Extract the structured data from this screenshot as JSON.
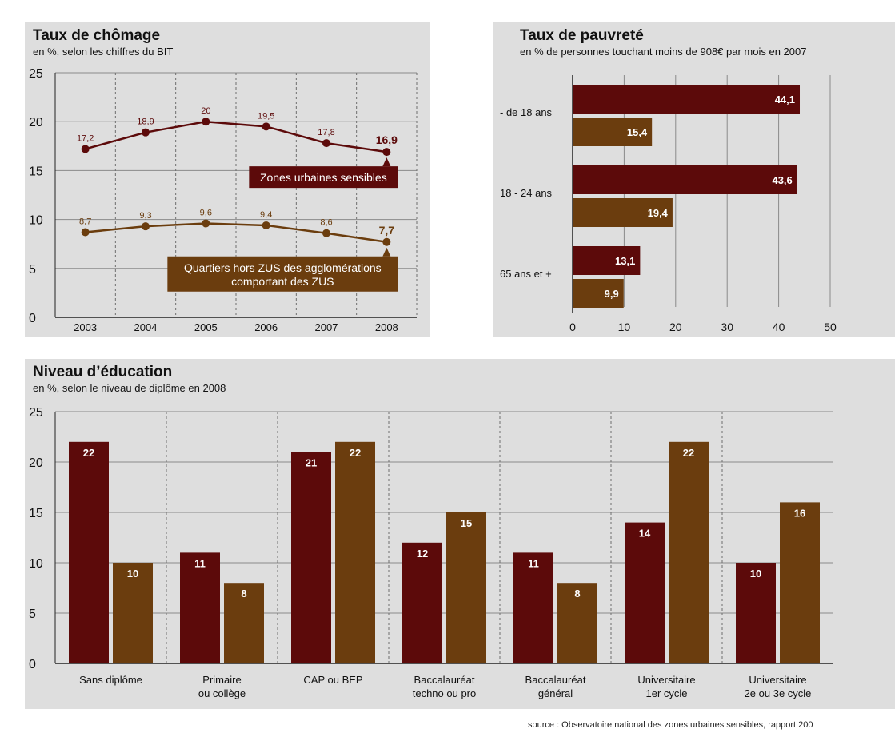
{
  "colors": {
    "zus": "#5c0a0a",
    "hors_zus": "#6b3d0e",
    "panel_bg": "#dedede"
  },
  "chomage": {
    "title": "Taux de chômage",
    "subtitle": "en %, selon les chiffres du BIT"
  },
  "pauvrete": {
    "title": "Taux de pauvreté",
    "subtitle": "en % de personnes touchant moins de 908€ par mois en 2007"
  },
  "education": {
    "title": "Niveau d’éducation",
    "subtitle": "en %, selon le niveau de diplôme en 2008"
  },
  "source": "source : Observatoire national des zones urbaines sensibles, rapport 200",
  "chart_data": [
    {
      "id": "chomage",
      "type": "line",
      "x": [
        "2003",
        "2004",
        "2005",
        "2006",
        "2007",
        "2008"
      ],
      "ylim": [
        0,
        25
      ],
      "yticks": [
        0,
        5,
        10,
        15,
        20,
        25
      ],
      "grid": true,
      "series": [
        {
          "name": "Zones urbaines sensibles",
          "values": [
            17.2,
            18.9,
            20,
            19.5,
            17.8,
            16.9
          ],
          "labels": [
            "17,2",
            "18,9",
            "20",
            "19,5",
            "17,8",
            "16,9"
          ],
          "color": "#5c0a0a"
        },
        {
          "name": "Quartiers hors ZUS des agglomérations comportant des ZUS",
          "name_lines": [
            "Quartiers hors ZUS des agglomérations",
            "comportant des ZUS"
          ],
          "values": [
            8.7,
            9.3,
            9.6,
            9.4,
            8.6,
            7.7
          ],
          "labels": [
            "8,7",
            "9,3",
            "9,6",
            "9,4",
            "8,6",
            "7,7"
          ],
          "color": "#6b3d0e"
        }
      ]
    },
    {
      "id": "pauvrete",
      "type": "bar",
      "orientation": "horizontal",
      "categories": [
        "- de 18 ans",
        "18 - 24 ans",
        "65 ans et +"
      ],
      "xlim": [
        0,
        50
      ],
      "xticks": [
        0,
        10,
        20,
        30,
        40,
        50
      ],
      "grid": true,
      "series": [
        {
          "values": [
            44.1,
            43.6,
            13.1
          ],
          "labels": [
            "44,1",
            "43,6",
            "13,1"
          ],
          "color": "#5c0a0a"
        },
        {
          "values": [
            15.4,
            19.4,
            9.9
          ],
          "labels": [
            "15,4",
            "19,4",
            "9,9"
          ],
          "color": "#6b3d0e"
        }
      ]
    },
    {
      "id": "education",
      "type": "bar",
      "categories": [
        [
          "Sans diplôme"
        ],
        [
          "Primaire",
          "ou collège"
        ],
        [
          "CAP ou BEP"
        ],
        [
          "Baccalauréat",
          "techno ou pro"
        ],
        [
          "Baccalauréat",
          "général"
        ],
        [
          "Universitaire",
          "1er cycle"
        ],
        [
          "Universitaire",
          "2e ou 3e cycle"
        ]
      ],
      "ylim": [
        0,
        25
      ],
      "yticks": [
        0,
        5,
        10,
        15,
        20,
        25
      ],
      "grid": true,
      "series": [
        {
          "values": [
            22,
            11,
            21,
            12,
            11,
            14,
            10
          ],
          "color": "#5c0a0a"
        },
        {
          "values": [
            10,
            8,
            22,
            15,
            8,
            22,
            16
          ],
          "color": "#6b3d0e"
        }
      ]
    }
  ]
}
